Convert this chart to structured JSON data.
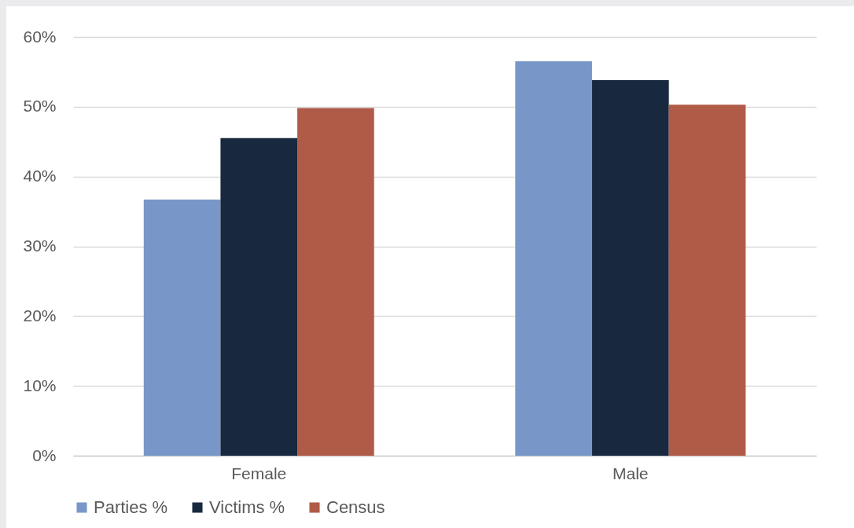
{
  "chart_data": {
    "type": "bar",
    "categories": [
      "Female",
      "Male"
    ],
    "series": [
      {
        "name": "Parties %",
        "color": "#7896c8",
        "values": [
          36.7,
          56.5
        ]
      },
      {
        "name": "Victims %",
        "color": "#18283e",
        "values": [
          45.5,
          53.8
        ]
      },
      {
        "name": "Census",
        "color": "#b05a48",
        "values": [
          49.8,
          50.3
        ]
      }
    ],
    "ylim": [
      0,
      60
    ],
    "yticks": [
      {
        "value": 0,
        "label": "0%"
      },
      {
        "value": 10,
        "label": "10%"
      },
      {
        "value": 20,
        "label": "20%"
      },
      {
        "value": 30,
        "label": "30%"
      },
      {
        "value": 40,
        "label": "40%"
      },
      {
        "value": 50,
        "label": "50%"
      },
      {
        "value": 60,
        "label": "60%"
      }
    ],
    "grid": "y",
    "legend": "bottom"
  }
}
